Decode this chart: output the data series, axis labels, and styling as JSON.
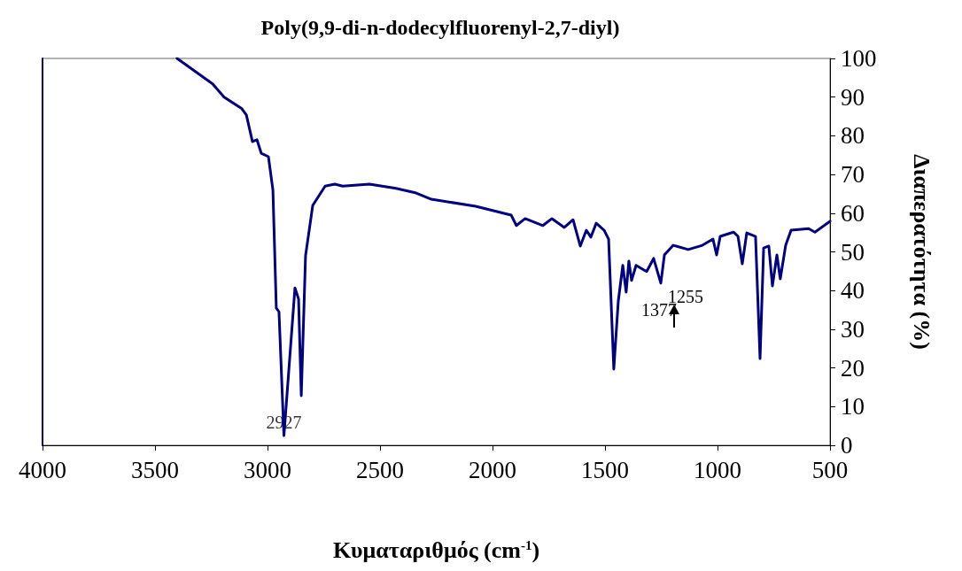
{
  "chart_data": {
    "type": "line",
    "title": "Poly(9,9-di-n-dodecylfluorenyl-2,7-diyl)",
    "xlabel": "Κυματαριθμός (cm$^{-1}$)",
    "ylabel": "Διαπερατότητα (%)",
    "xlim": [
      4000,
      500
    ],
    "xticks": [
      4000,
      3500,
      3000,
      2500,
      2000,
      1500,
      1000,
      500
    ],
    "ylim": [
      0,
      100
    ],
    "yticks": [
      0,
      10,
      20,
      30,
      40,
      50,
      60,
      70,
      80,
      90,
      100
    ],
    "grid": false,
    "marker": "none",
    "line_style": "solid",
    "series": [
      {
        "color": "#000080",
        "x": [
          3402,
          3244,
          3193,
          3114,
          3094,
          3067,
          3047,
          3028,
          2996,
          2976,
          2961,
          2949,
          2927,
          2878,
          2862,
          2850,
          2831,
          2799,
          2744,
          2701,
          2666,
          2547,
          2429,
          2339,
          2272,
          2075,
          1917,
          1894,
          1855,
          1776,
          1736,
          1681,
          1642,
          1610,
          1583,
          1563,
          1539,
          1504,
          1484,
          1461,
          1441,
          1421,
          1406,
          1394,
          1382,
          1362,
          1315,
          1284,
          1252,
          1236,
          1197,
          1130,
          1067,
          1020,
          1004,
          988,
          929,
          909,
          890,
          870,
          831,
          811,
          795,
          772,
          756,
          736,
          721,
          697,
          673,
          595,
          567,
          500
        ],
        "values": [
          100,
          93.4,
          90,
          87,
          85.4,
          78.5,
          79,
          75.5,
          74.6,
          66,
          35.5,
          34.5,
          2.5,
          40.7,
          37.8,
          12.8,
          49,
          62,
          67,
          67.5,
          67,
          67.5,
          66.4,
          65.2,
          63.6,
          61.8,
          59.5,
          56.8,
          58.6,
          56.8,
          58.6,
          56.3,
          58.3,
          51.5,
          55.6,
          53.8,
          57.4,
          55.6,
          53.3,
          19.7,
          37.3,
          46.5,
          39.6,
          47.6,
          42.6,
          46.5,
          44.9,
          48.3,
          41.9,
          49.2,
          51.7,
          50.6,
          51.7,
          53.3,
          49.2,
          54,
          55.1,
          54,
          46.9,
          54.9,
          54,
          22.4,
          51,
          51.5,
          41.2,
          49.2,
          43,
          51.7,
          55.6,
          56,
          55.1,
          57.9
        ]
      }
    ],
    "annotations": [
      {
        "text": "2927",
        "x": 2927,
        "y": 6
      },
      "1377",
      "1255"
    ]
  }
}
